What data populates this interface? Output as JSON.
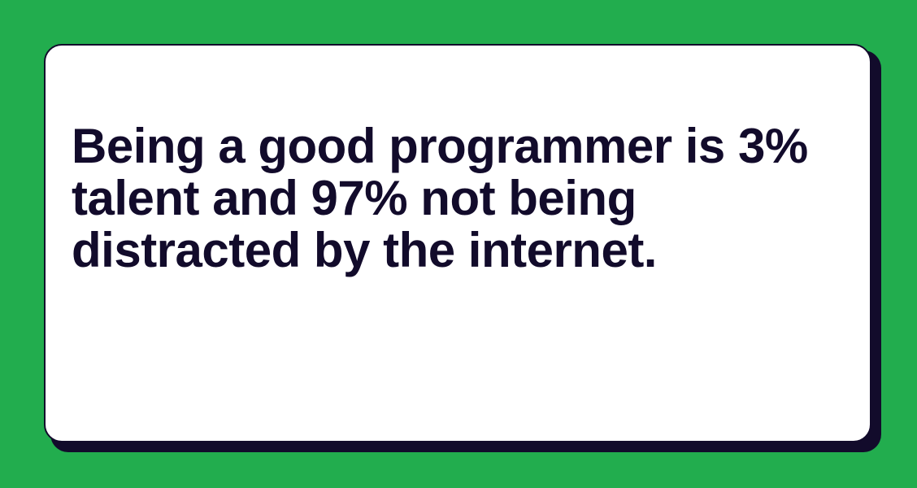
{
  "colors": {
    "background": "#22ad4e",
    "card": "#ffffff",
    "text": "#120b2b",
    "shadow": "#120b2b"
  },
  "quote": {
    "lines": [
      "Being a good programmer is 3%",
      "talent and 97% not being",
      "distracted by the internet."
    ]
  }
}
